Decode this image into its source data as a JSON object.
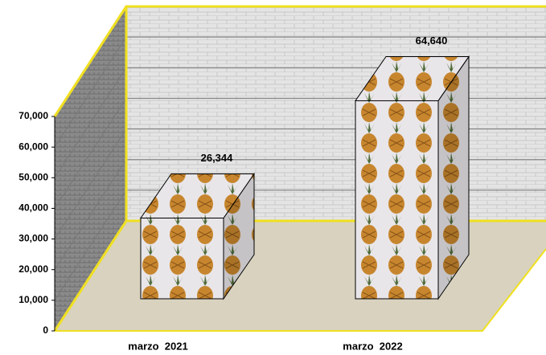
{
  "chart_data": {
    "type": "bar3d",
    "categories": [
      "marzo  2021",
      "marzo  2022"
    ],
    "values": [
      26344,
      64640
    ],
    "value_labels": [
      "26,344",
      "64,640"
    ],
    "ylim": [
      0,
      70000
    ],
    "yticks": [
      {
        "value": 0,
        "label": "0"
      },
      {
        "value": 10000,
        "label": "10,000"
      },
      {
        "value": 20000,
        "label": "20,000"
      },
      {
        "value": 30000,
        "label": "30,000"
      },
      {
        "value": 40000,
        "label": "40,000"
      },
      {
        "value": 50000,
        "label": "50,000"
      },
      {
        "value": 60000,
        "label": "60,000"
      },
      {
        "value": 70000,
        "label": "70,000"
      }
    ],
    "grid": true
  }
}
